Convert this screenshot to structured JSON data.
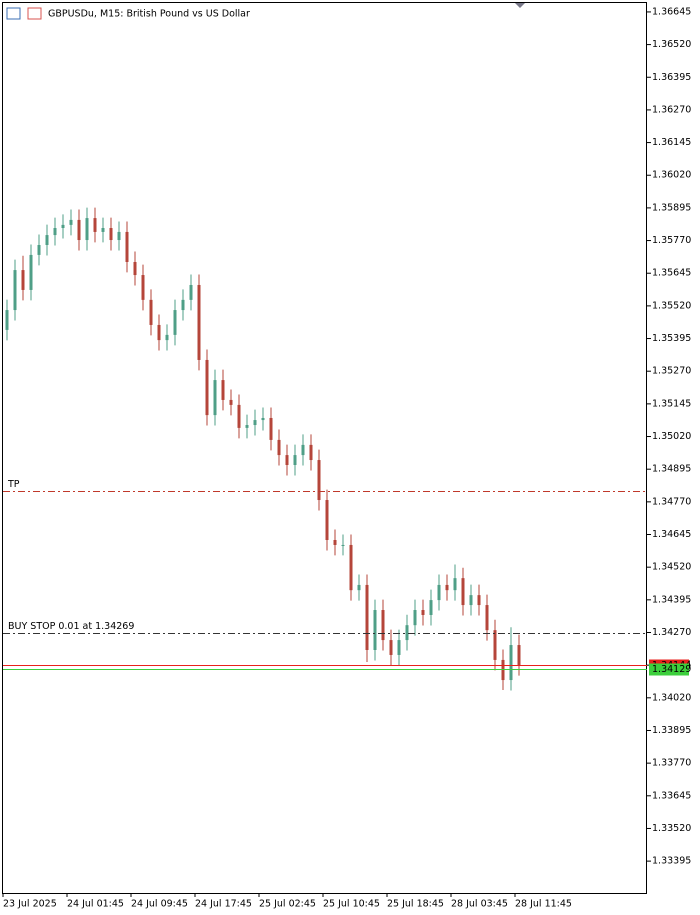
{
  "chart_data": {
    "type": "candlestick",
    "title": "GBPUSDu, M15:  British Pound vs US Dollar",
    "up_color": "#4f9f87",
    "down_color": "#b5453a",
    "x": [
      0.5,
      1.5,
      2.5,
      3.5,
      4.5,
      5.5,
      6.5,
      7.5,
      8.5,
      9.5,
      10.5,
      11.5,
      12.5,
      13.5,
      14.5,
      15.5,
      16.5,
      17.5,
      18.5,
      19.5,
      20.5,
      21.5,
      22.5,
      23.5,
      24.5,
      25.5,
      26.5,
      27.5,
      28.5,
      29.5,
      30.5,
      31.5,
      32.5,
      33.5,
      34.5,
      35.5,
      36.5,
      37.5,
      38.5,
      39.5,
      40.5,
      41.5,
      42.5,
      43.5,
      44.5,
      45.5,
      46.5,
      47.5,
      48.5,
      49.5,
      50.5,
      51.5,
      52.5,
      53.5,
      54.5,
      55.5,
      56.5,
      57.5,
      58.5,
      59.5,
      60.5,
      61.5,
      62.5,
      63.5,
      64.5
    ],
    "open": [
      1.35428,
      1.35504,
      1.35657,
      1.35581,
      1.35715,
      1.35753,
      1.35791,
      1.35818,
      1.3583,
      1.35849,
      1.35772,
      1.35856,
      1.35803,
      1.35818,
      1.35772,
      1.35803,
      1.35688,
      1.35638,
      1.35543,
      1.35447,
      1.35389,
      1.35409,
      1.35504,
      1.35543,
      1.356,
      1.35313,
      1.35102,
      1.35236,
      1.3516,
      1.35141,
      1.35053,
      1.35064,
      1.35083,
      1.35091,
      1.35007,
      1.34949,
      1.34911,
      1.34949,
      1.34988,
      1.3493,
      1.34777,
      1.34624,
      1.34605,
      1.34605,
      1.34432,
      1.34452,
      1.34203,
      1.34356,
      1.34241,
      1.34184,
      1.34241,
      1.34298,
      1.34356,
      1.34337,
      1.34394,
      1.34452,
      1.34432,
      1.34478,
      1.34375,
      1.34413,
      1.34375,
      1.34279,
      1.34165,
      1.34088,
      1.34222
    ],
    "high": [
      1.35544,
      1.35697,
      1.35712,
      1.35755,
      1.35793,
      1.35831,
      1.35858,
      1.3587,
      1.35889,
      1.35889,
      1.35896,
      1.35896,
      1.35858,
      1.35858,
      1.35843,
      1.35843,
      1.35728,
      1.35678,
      1.35583,
      1.35487,
      1.35449,
      1.35544,
      1.35583,
      1.3564,
      1.3564,
      1.35353,
      1.35276,
      1.35276,
      1.352,
      1.35181,
      1.35104,
      1.35123,
      1.35131,
      1.35131,
      1.35047,
      1.34989,
      1.34989,
      1.35028,
      1.35028,
      1.3497,
      1.34817,
      1.34664,
      1.34645,
      1.34645,
      1.34492,
      1.34492,
      1.34396,
      1.34396,
      1.34281,
      1.34281,
      1.34338,
      1.34396,
      1.34396,
      1.34434,
      1.34492,
      1.34492,
      1.3453,
      1.34518,
      1.34453,
      1.34453,
      1.34415,
      1.34319,
      1.34205,
      1.3429,
      1.34262
    ],
    "low": [
      1.35388,
      1.35464,
      1.35541,
      1.35541,
      1.35675,
      1.35713,
      1.35751,
      1.35778,
      1.3579,
      1.35732,
      1.35732,
      1.35763,
      1.35763,
      1.35732,
      1.35732,
      1.35648,
      1.35598,
      1.35503,
      1.35407,
      1.35349,
      1.35349,
      1.35369,
      1.35464,
      1.35503,
      1.35273,
      1.35062,
      1.35062,
      1.3512,
      1.35101,
      1.35013,
      1.35013,
      1.35024,
      1.35043,
      1.34967,
      1.34909,
      1.34871,
      1.34871,
      1.34909,
      1.3489,
      1.34737,
      1.34584,
      1.34565,
      1.34565,
      1.34392,
      1.34392,
      1.34157,
      1.34163,
      1.34201,
      1.34144,
      1.34144,
      1.34201,
      1.34258,
      1.34297,
      1.34297,
      1.34354,
      1.34392,
      1.34392,
      1.34335,
      1.34335,
      1.34335,
      1.34239,
      1.34125,
      1.3405,
      1.34048,
      1.34105
    ],
    "close": [
      1.35504,
      1.35657,
      1.35581,
      1.35715,
      1.35753,
      1.35791,
      1.35818,
      1.3583,
      1.35849,
      1.35772,
      1.35856,
      1.35803,
      1.35818,
      1.35772,
      1.35803,
      1.35688,
      1.35638,
      1.35543,
      1.35447,
      1.35389,
      1.35409,
      1.35504,
      1.35543,
      1.356,
      1.35313,
      1.35102,
      1.35236,
      1.3516,
      1.35141,
      1.35053,
      1.35064,
      1.35083,
      1.35091,
      1.35007,
      1.34949,
      1.34911,
      1.34949,
      1.34988,
      1.3493,
      1.34777,
      1.34624,
      1.34605,
      1.34605,
      1.34432,
      1.34452,
      1.34203,
      1.34356,
      1.34241,
      1.34184,
      1.34241,
      1.34298,
      1.34356,
      1.34337,
      1.34394,
      1.34452,
      1.34432,
      1.34478,
      1.34375,
      1.34413,
      1.34375,
      1.34279,
      1.34165,
      1.34088,
      1.34222,
      1.34145
    ],
    "xlim": [
      0,
      80.5
    ],
    "xticks": [
      {
        "value": 0,
        "label": "23 Jul 2025"
      },
      {
        "value": 8,
        "label": "24 Jul 01:45"
      },
      {
        "value": 16,
        "label": "24 Jul 09:45"
      },
      {
        "value": 24,
        "label": "24 Jul 17:45"
      },
      {
        "value": 32,
        "label": "25 Jul 02:45"
      },
      {
        "value": 40,
        "label": "25 Jul 10:45"
      },
      {
        "value": 48,
        "label": "25 Jul 18:45"
      },
      {
        "value": 56,
        "label": "28 Jul 03:45"
      },
      {
        "value": 64,
        "label": "28 Jul 11:45"
      }
    ],
    "ylim": [
      1.33273,
      1.36683
    ],
    "yticks": [
      1.36645,
      {
        "value": 1.3652,
        "label": "1.36520"
      },
      1.36395,
      {
        "value": 1.3627,
        "label": "1.36270"
      },
      1.36145,
      {
        "value": 1.3602,
        "label": "1.36020"
      },
      1.35895,
      {
        "value": 1.3577,
        "label": "1.35770"
      },
      1.35645,
      {
        "value": 1.3552,
        "label": "1.35520"
      },
      1.35395,
      {
        "value": 1.3527,
        "label": "1.35270"
      },
      1.35145,
      {
        "value": 1.3502,
        "label": "1.35020"
      },
      1.34895,
      {
        "value": 1.3477,
        "label": "1.34770"
      },
      1.34645,
      {
        "value": 1.3452,
        "label": "1.34520"
      },
      1.34395,
      {
        "value": 1.3427,
        "label": "1.34270"
      },
      1.34145,
      {
        "value": 1.3402,
        "label": "1.34020"
      },
      1.33895,
      {
        "value": 1.3377,
        "label": "1.33770"
      },
      1.33645,
      {
        "value": 1.3352,
        "label": "1.33520"
      },
      1.33395
    ],
    "levels": [
      {
        "name": "TP",
        "value": 1.34811,
        "color": "#c0392b",
        "style": "dashdot"
      },
      {
        "name": "BUY STOP 0.01 at 1.34269",
        "value": 1.34269,
        "color": "#333333",
        "style": "dashdot"
      },
      {
        "value": 1.34144,
        "color": "#e8201c",
        "style": "solid",
        "tag": true
      },
      {
        "value": 1.34129,
        "color": "#3ccf3c",
        "style": "solid",
        "tag": true
      }
    ]
  }
}
